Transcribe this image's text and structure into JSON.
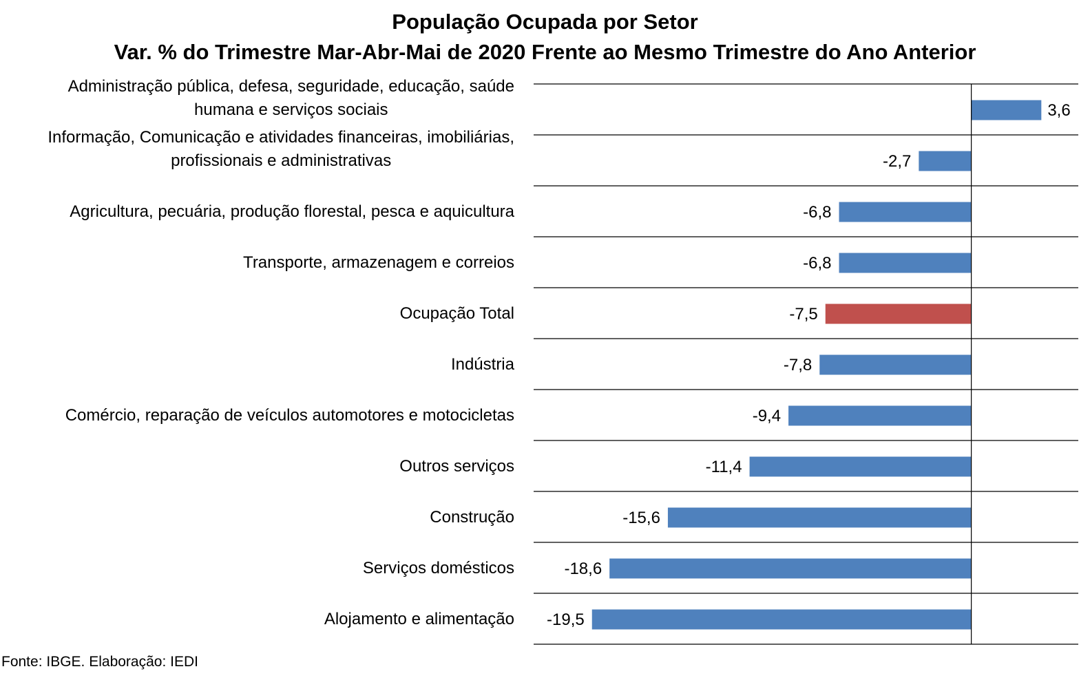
{
  "chart_data": {
    "type": "bar",
    "orientation": "horizontal",
    "title": "População Ocupada por Setor",
    "subtitle": "Var. % do Trimestre Mar-Abr-Mai de 2020 Frente ao Mesmo Trimestre do Ano Anterior",
    "categories": [
      "Administração pública, defesa, seguridade, educação, saúde humana e serviços sociais",
      "Informação, Comunicação e atividades financeiras, imobiliárias, profissionais e administrativas",
      "Agricultura, pecuária, produção florestal, pesca e aquicultura",
      "Transporte, armazenagem e correios",
      "Ocupação Total",
      "Indústria",
      "Comércio, reparação de veículos automotores e motocicletas",
      "Outros serviços",
      "Construção",
      "Serviços domésticos",
      "Alojamento e alimentação"
    ],
    "category_lines": [
      [
        "Administração pública, defesa, seguridade, educação, saúde",
        "humana e serviços sociais"
      ],
      [
        "Informação, Comunicação e atividades financeiras, imobiliárias,",
        "profissionais e administrativas"
      ],
      [
        "Agricultura, pecuária, produção florestal, pesca e aquicultura"
      ],
      [
        "Transporte, armazenagem e correios"
      ],
      [
        "Ocupação Total"
      ],
      [
        "Indústria"
      ],
      [
        "Comércio, reparação de veículos automotores e motocicletas"
      ],
      [
        "Outros serviços"
      ],
      [
        "Construção"
      ],
      [
        "Serviços domésticos"
      ],
      [
        "Alojamento e alimentação"
      ]
    ],
    "values": [
      3.6,
      -2.7,
      -6.8,
      -6.8,
      -7.5,
      -7.8,
      -9.4,
      -11.4,
      -15.6,
      -18.6,
      -19.5
    ],
    "value_labels": [
      "3,6",
      "-2,7",
      "-6,8",
      "-6,8",
      "-7,5",
      "-7,8",
      "-9,4",
      "-11,4",
      "-15,6",
      "-18,6",
      "-19,5"
    ],
    "highlight_index": 4,
    "bar_color": "#4F81BD",
    "highlight_color": "#C0504D",
    "xlim": [
      -22.5,
      5.5
    ],
    "grid": true,
    "legend": false
  },
  "source": "Fonte: IBGE. Elaboração: IEDI"
}
